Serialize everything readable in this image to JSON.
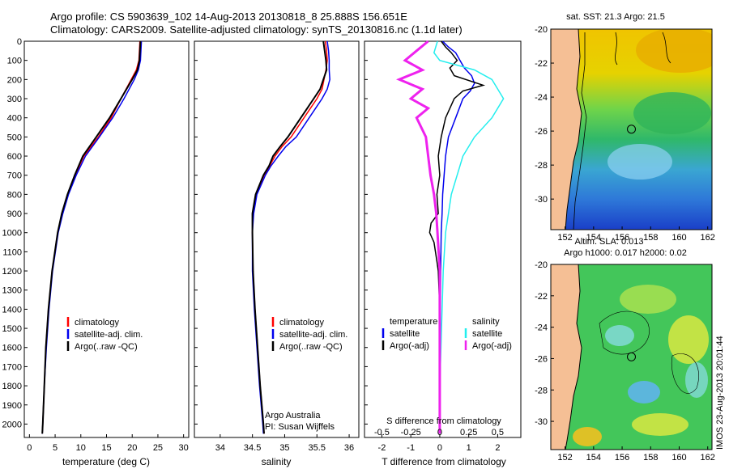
{
  "header": {
    "line1": "Argo profile: CS 5903639_102 14-Aug-2013 20130818_8 25.888S 156.651E",
    "line2": "Climatology: CARS2009. Satellite-adjusted climatology: synTS_20130816.nc (1.1d later)"
  },
  "side_label": "IMOS 23-Aug-2013 20:01:44",
  "colors": {
    "climatology": "#ff0000",
    "satellite": "#0000ee",
    "argo": "#000000",
    "sal_satellite": "#22eeee",
    "sal_argo": "#ee22ee"
  },
  "chart_data": [
    {
      "type": "line",
      "name": "temperature-profile",
      "xlabel": "temperature (deg C)",
      "ylabel": "depth",
      "xlim": [
        -1,
        31
      ],
      "ylim": [
        2070,
        0
      ],
      "xticks": [
        0,
        5,
        10,
        15,
        20,
        25,
        30
      ],
      "yticks": [
        0,
        100,
        200,
        300,
        400,
        500,
        600,
        700,
        800,
        900,
        1000,
        1100,
        1200,
        1300,
        1400,
        1500,
        1600,
        1700,
        1800,
        1900,
        2000
      ],
      "legend": [
        "climatology",
        "satellite-adj. clim.",
        "Argo(..raw -QC)"
      ],
      "series": [
        {
          "name": "climatology",
          "color": "#ff0000",
          "depth": [
            0,
            100,
            150,
            200,
            300,
            400,
            500,
            600,
            700,
            800,
            900,
            1000,
            1200,
            1400,
            1600,
            1800,
            2000,
            2050
          ],
          "values": [
            21.5,
            21.3,
            20.8,
            19.8,
            17.8,
            15.9,
            13.4,
            10.6,
            8.9,
            7.5,
            6.4,
            5.5,
            4.4,
            3.7,
            3.2,
            2.9,
            2.6,
            2.5
          ]
        },
        {
          "name": "satellite-adj. clim.",
          "color": "#0000ee",
          "depth": [
            0,
            100,
            150,
            200,
            300,
            400,
            500,
            600,
            700,
            800,
            900,
            1000,
            1200,
            1400,
            1600,
            1800,
            2000,
            2050
          ],
          "values": [
            21.8,
            21.6,
            21.2,
            20.4,
            18.4,
            16.2,
            13.6,
            10.9,
            9.1,
            7.6,
            6.5,
            5.6,
            4.5,
            3.8,
            3.3,
            2.9,
            2.6,
            2.5
          ]
        },
        {
          "name": "Argo(..raw -QC)",
          "color": "#000000",
          "depth": [
            0,
            100,
            150,
            200,
            300,
            400,
            500,
            600,
            700,
            800,
            900,
            1000,
            1200,
            1400,
            1600,
            1800,
            2000,
            2050
          ],
          "values": [
            21.6,
            21.4,
            21.0,
            20.0,
            17.8,
            15.6,
            13.0,
            10.4,
            8.8,
            7.4,
            6.3,
            5.5,
            4.4,
            3.7,
            3.2,
            2.9,
            2.6,
            2.5
          ]
        }
      ]
    },
    {
      "type": "line",
      "name": "salinity-profile",
      "xlabel": "salinity",
      "ylabel": "depth",
      "xlim": [
        33.6,
        36.15
      ],
      "ylim": [
        2070,
        0
      ],
      "xticks": [
        34,
        34.5,
        35,
        35.5,
        36
      ],
      "legend": [
        "climatology",
        "satellite-adj. clim.",
        "Argo(..raw -QC)"
      ],
      "annotation": [
        "Argo Australia",
        "PI: Susan Wijffels"
      ],
      "series": [
        {
          "name": "climatology",
          "color": "#ff0000",
          "depth": [
            0,
            50,
            100,
            150,
            200,
            250,
            300,
            400,
            500,
            550,
            600,
            650,
            700,
            800,
            900,
            1000,
            1200,
            1400,
            1600,
            1800,
            2000,
            2050
          ],
          "values": [
            35.63,
            35.65,
            35.66,
            35.64,
            35.61,
            35.58,
            35.5,
            35.3,
            35.1,
            34.96,
            34.85,
            34.77,
            34.68,
            34.56,
            34.51,
            34.5,
            34.51,
            34.54,
            34.58,
            34.62,
            34.67,
            34.68
          ]
        },
        {
          "name": "satellite-adj. clim.",
          "color": "#0000ee",
          "depth": [
            0,
            50,
            100,
            150,
            200,
            250,
            300,
            400,
            500,
            550,
            600,
            650,
            700,
            800,
            900,
            1000,
            1200,
            1400,
            1600,
            1800,
            2000,
            2050
          ],
          "values": [
            35.66,
            35.68,
            35.69,
            35.69,
            35.7,
            35.66,
            35.58,
            35.38,
            35.18,
            35.02,
            34.9,
            34.79,
            34.7,
            34.57,
            34.52,
            34.5,
            34.5,
            34.53,
            34.57,
            34.61,
            34.66,
            34.67
          ]
        },
        {
          "name": "Argo(..raw -QC)",
          "color": "#000000",
          "depth": [
            0,
            50,
            100,
            150,
            200,
            250,
            300,
            400,
            500,
            550,
            600,
            650,
            700,
            800,
            900,
            1000,
            1200,
            1400,
            1600,
            1800,
            2000,
            2050
          ],
          "values": [
            35.6,
            35.62,
            35.64,
            35.65,
            35.6,
            35.55,
            35.45,
            35.25,
            35.05,
            34.93,
            34.82,
            34.76,
            34.67,
            34.55,
            34.5,
            34.5,
            34.51,
            34.54,
            34.58,
            34.62,
            34.67,
            34.68
          ]
        }
      ]
    },
    {
      "type": "line",
      "name": "difference-profile",
      "xlabel": "T difference from climatology",
      "xlabel_top": "S difference from climatology",
      "ylabel": "depth",
      "xlim": [
        -2.6,
        2.8
      ],
      "ylim": [
        2070,
        0
      ],
      "xticks": [
        -2,
        -1,
        0,
        1,
        2
      ],
      "xticks_salinity": [
        -0.5,
        -0.25,
        0,
        0.25,
        0.5
      ],
      "legend_titles": [
        "temperature",
        "salinity"
      ],
      "legend": [
        "satellite",
        "Argo(-adj)",
        "satellite",
        "Argo(-adj)"
      ],
      "series": [
        {
          "name": "temperature satellite",
          "color": "#0000ee",
          "depth": [
            0,
            30,
            60,
            100,
            140,
            180,
            220,
            260,
            300,
            400,
            500,
            600,
            700,
            800,
            900,
            1000,
            1200,
            1400,
            1600,
            1800,
            2050
          ],
          "values": [
            0.1,
            0.3,
            0.55,
            0.7,
            0.85,
            1.1,
            1.2,
            1.05,
            0.8,
            0.55,
            0.3,
            0.2,
            0.15,
            0.1,
            0.08,
            0.05,
            0.03,
            0.02,
            0.01,
            0.01,
            0
          ]
        },
        {
          "name": "temperature Argo(-adj)",
          "color": "#000000",
          "depth": [
            0,
            30,
            60,
            100,
            140,
            180,
            230,
            260,
            300,
            350,
            400,
            500,
            600,
            700,
            800,
            900,
            950,
            1000,
            1050,
            1100,
            1150,
            1200,
            1400,
            1600,
            1800,
            2050
          ],
          "values": [
            0.05,
            0.2,
            0.4,
            0.6,
            0.35,
            0.5,
            1.5,
            0.8,
            0.5,
            0.35,
            0.2,
            0.05,
            -0.05,
            0,
            -0.1,
            -0.05,
            -0.3,
            -0.35,
            -0.2,
            -0.15,
            -0.1,
            -0.05,
            0,
            0,
            0,
            0
          ]
        },
        {
          "name": "salinity satellite",
          "color": "#22eeee",
          "depth": [
            0,
            60,
            100,
            150,
            200,
            300,
            400,
            500,
            600,
            800,
            1000,
            1200,
            1400,
            1600,
            1800,
            2050
          ],
          "values": [
            -0.02,
            -0.05,
            0.0,
            0.3,
            0.45,
            0.55,
            0.45,
            0.3,
            0.2,
            0.1,
            0.05,
            0.03,
            0.02,
            0.01,
            0.0,
            0.0
          ]
        },
        {
          "name": "salinity Argo(-adj)",
          "color": "#ee22ee",
          "depth": [
            0,
            50,
            100,
            150,
            200,
            250,
            300,
            350,
            400,
            500,
            600,
            700,
            800,
            900,
            1000,
            1200,
            1400,
            1600,
            1800,
            2050
          ],
          "values": [
            -0.1,
            -0.2,
            -0.3,
            -0.15,
            -0.35,
            -0.15,
            -0.25,
            -0.1,
            -0.2,
            -0.12,
            -0.1,
            -0.08,
            -0.05,
            -0.03,
            -0.02,
            0,
            0,
            0,
            0,
            0
          ]
        }
      ]
    },
    {
      "type": "heatmap",
      "name": "sst-map",
      "title": "sat. SST: 21.3  Argo: 21.5",
      "xticks": [
        152,
        154,
        156,
        158,
        160,
        162
      ],
      "yticks": [
        -20,
        -22,
        -24,
        -26,
        -28,
        -30
      ],
      "xlim": [
        151,
        162.3
      ],
      "ylim": [
        -31.8,
        -20
      ],
      "marker": {
        "lon": 156.651,
        "lat": -25.888
      }
    },
    {
      "type": "heatmap",
      "name": "sla-map",
      "title_lines": [
        "Altim. SLA: 0.013",
        "Argo h1000: 0.017 h2000: 0.02"
      ],
      "xticks": [
        152,
        154,
        156,
        158,
        160,
        162
      ],
      "yticks": [
        -20,
        -22,
        -24,
        -26,
        -28,
        -30
      ],
      "xlim": [
        151,
        162.3
      ],
      "ylim": [
        -31.8,
        -20
      ],
      "marker": {
        "lon": 156.651,
        "lat": -25.888
      }
    }
  ]
}
